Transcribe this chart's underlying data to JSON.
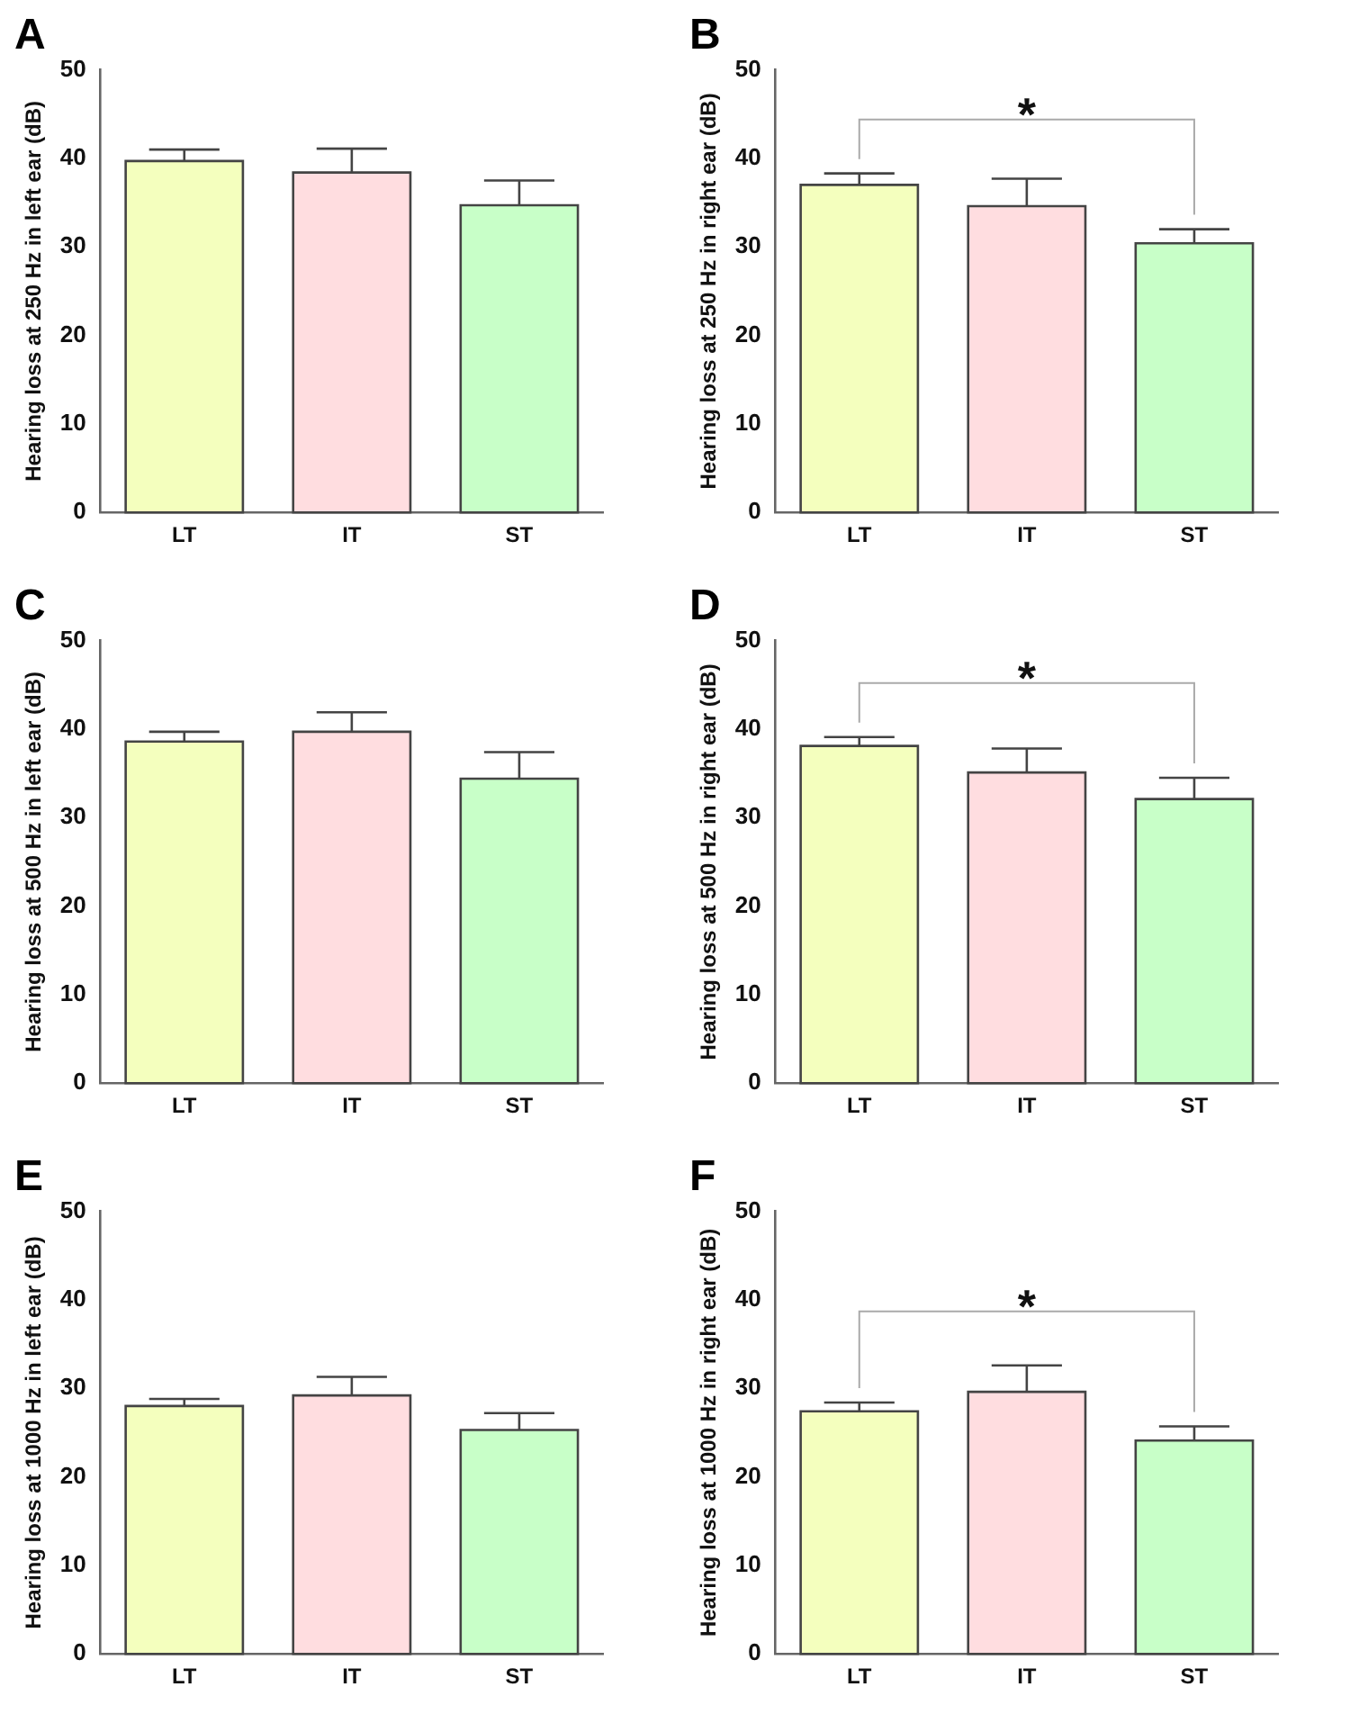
{
  "chart_data": [
    {
      "type": "bar",
      "title": "A",
      "ylabel": "Hearing loss at 250 Hz in left ear (dB)",
      "categories": [
        "LT",
        "IT",
        "ST"
      ],
      "values": [
        39.7,
        38.4,
        34.7
      ],
      "errors": [
        [
          39.7,
          41.0
        ],
        [
          38.4,
          41.1
        ],
        [
          34.7,
          37.5
        ]
      ],
      "colors": [
        "#f4ffbe",
        "#ffdde0",
        "#c8ffc8"
      ],
      "ylim": [
        0,
        50
      ],
      "yticks": [
        0,
        10,
        20,
        30,
        40,
        50
      ],
      "grid": false
    },
    {
      "type": "bar",
      "title": "B",
      "ylabel": "Hearing loss at 250 Hz in right ear (dB)",
      "categories": [
        "LT",
        "IT",
        "ST"
      ],
      "values": [
        37.0,
        34.6,
        30.4
      ],
      "errors": [
        [
          37.0,
          38.3
        ],
        [
          34.6,
          37.7
        ],
        [
          30.4,
          32.0
        ]
      ],
      "colors": [
        "#f4ffbe",
        "#ffdde0",
        "#c8ffc8"
      ],
      "ylim": [
        0,
        50
      ],
      "yticks": [
        0,
        10,
        20,
        30,
        40,
        50
      ],
      "grid": false,
      "annotations": [
        "*"
      ]
    },
    {
      "type": "bar",
      "title": "C",
      "ylabel": "Hearing loss at 500 Hz in left ear (dB)",
      "categories": [
        "LT",
        "IT",
        "ST"
      ],
      "values": [
        38.6,
        39.7,
        34.4
      ],
      "errors": [
        [
          38.6,
          39.7
        ],
        [
          39.7,
          41.9
        ],
        [
          34.4,
          37.4
        ]
      ],
      "colors": [
        "#f4ffbe",
        "#ffdde0",
        "#c8ffc8"
      ],
      "ylim": [
        0,
        50
      ],
      "yticks": [
        0,
        10,
        20,
        30,
        40,
        50
      ],
      "grid": false
    },
    {
      "type": "bar",
      "title": "D",
      "ylabel": "Hearing loss at 500 Hz in right ear (dB)",
      "categories": [
        "LT",
        "IT",
        "ST"
      ],
      "values": [
        38.1,
        35.1,
        32.1
      ],
      "errors": [
        [
          38.1,
          39.1
        ],
        [
          35.1,
          37.8
        ],
        [
          32.1,
          34.5
        ]
      ],
      "colors": [
        "#f4ffbe",
        "#ffdde0",
        "#c8ffc8"
      ],
      "ylim": [
        0,
        50
      ],
      "yticks": [
        0,
        10,
        20,
        30,
        40,
        50
      ],
      "grid": false,
      "annotations": [
        "*"
      ]
    },
    {
      "type": "bar",
      "title": "E",
      "ylabel": "Hearing loss at 1000 Hz in left ear (dB)",
      "categories": [
        "LT",
        "IT",
        "ST"
      ],
      "values": [
        28.0,
        29.2,
        25.3
      ],
      "errors": [
        [
          28.0,
          28.8
        ],
        [
          29.2,
          31.3
        ],
        [
          25.3,
          27.2
        ]
      ],
      "colors": [
        "#f4ffbe",
        "#ffdde0",
        "#c8ffc8"
      ],
      "ylim": [
        0,
        50
      ],
      "yticks": [
        0,
        10,
        20,
        30,
        40,
        50
      ],
      "grid": false
    },
    {
      "type": "bar",
      "title": "F",
      "ylabel": "Hearing loss at 1000 Hz in right ear (dB)",
      "categories": [
        "LT",
        "IT",
        "ST"
      ],
      "values": [
        27.4,
        29.6,
        24.1
      ],
      "errors": [
        [
          27.4,
          28.4
        ],
        [
          29.6,
          32.6
        ],
        [
          24.1,
          25.7
        ]
      ],
      "colors": [
        "#f4ffbe",
        "#ffdde0",
        "#c8ffc8"
      ],
      "ylim": [
        0,
        50
      ],
      "yticks": [
        0,
        10,
        20,
        30,
        40,
        50
      ],
      "grid": false,
      "annotations": [
        "*"
      ]
    }
  ]
}
